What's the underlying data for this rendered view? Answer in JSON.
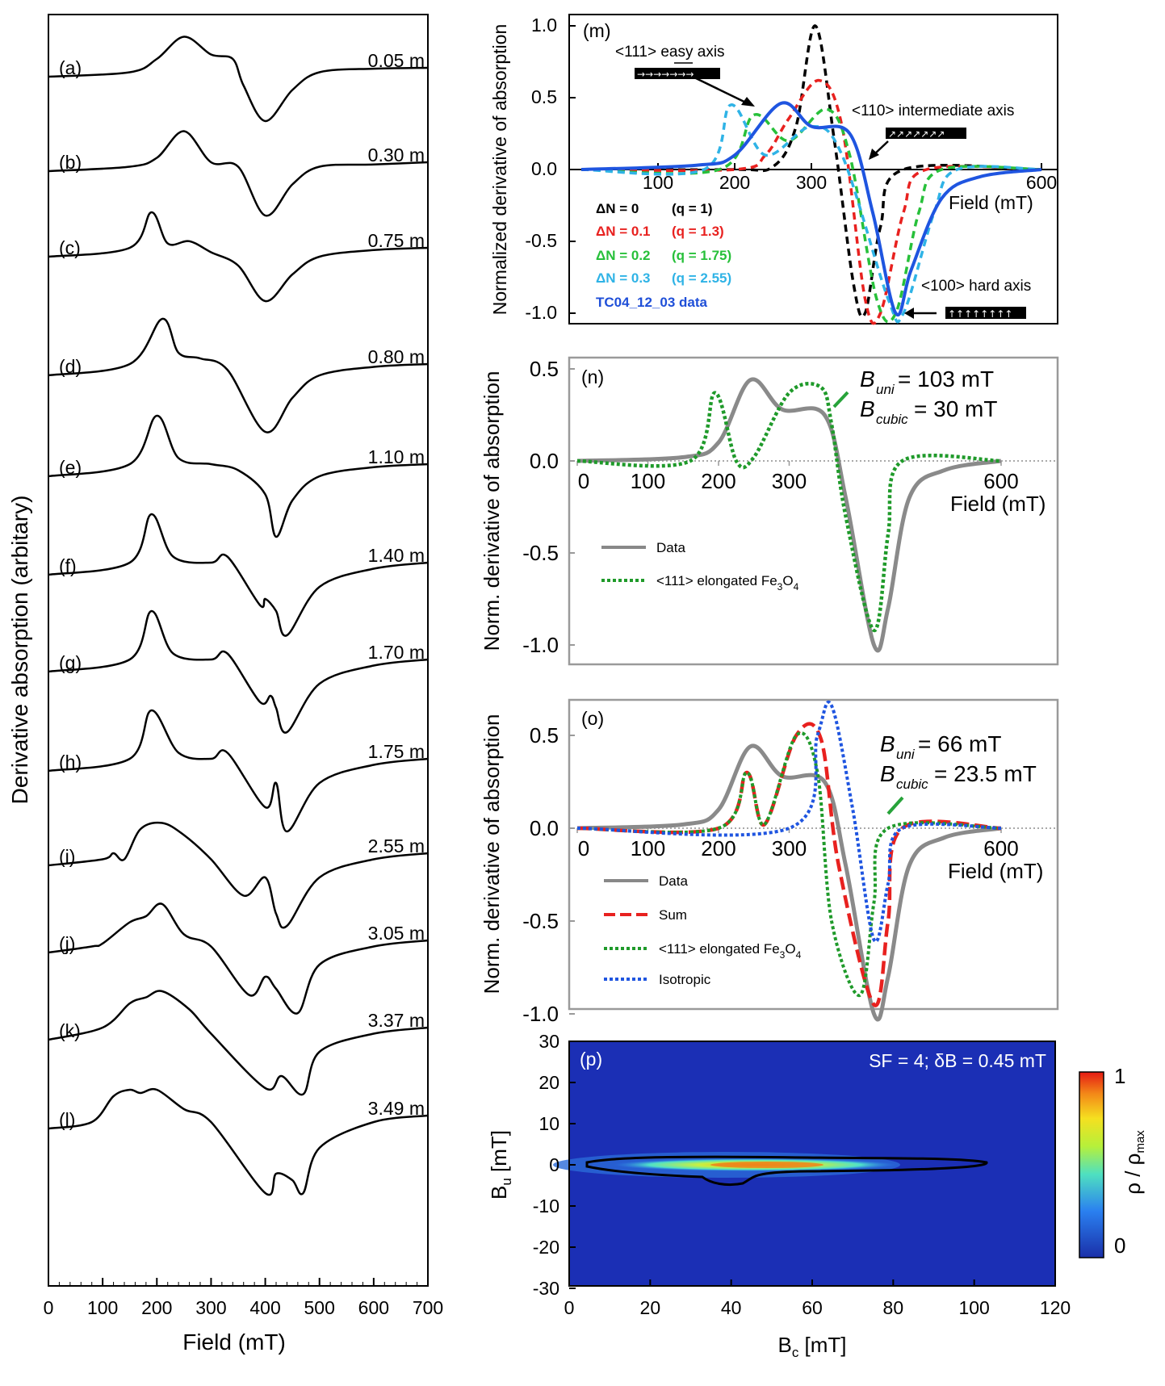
{
  "left_panel": {
    "ylabel": "Derivative absorption (arbitary)",
    "xlabel": "Field (mT)",
    "xticks": [
      "0",
      "100",
      "200",
      "300",
      "400",
      "500",
      "600",
      "700"
    ],
    "spectra": [
      {
        "letter": "(a)",
        "depth": "0.05 m"
      },
      {
        "letter": "(b)",
        "depth": "0.30 m"
      },
      {
        "letter": "(c)",
        "depth": "0.75 m"
      },
      {
        "letter": "(d)",
        "depth": "0.80 m"
      },
      {
        "letter": "(e)",
        "depth": "1.10 m"
      },
      {
        "letter": "(f)",
        "depth": "1.40 m"
      },
      {
        "letter": "(g)",
        "depth": "1.70 m"
      },
      {
        "letter": "(h)",
        "depth": "1.75 m"
      },
      {
        "letter": "(i)",
        "depth": "2.55 m"
      },
      {
        "letter": "(j)",
        "depth": "3.05 m"
      },
      {
        "letter": "(k)",
        "depth": "3.37 m"
      },
      {
        "letter": "(l)",
        "depth": "3.49 m"
      }
    ]
  },
  "panel_m": {
    "label": "(m)",
    "ylabel": "Normalized derivative of absorption",
    "xlabel": "Field (mT)",
    "yticks": [
      "1.0",
      "0.5",
      "0.0",
      "-0.5",
      "-1.0"
    ],
    "xticks": [
      "100",
      "200",
      "300",
      "600"
    ],
    "easy_axis": "<111> easy axis",
    "intermediate_axis": "<110> intermediate axis",
    "hard_axis": "<100> hard axis",
    "legend": [
      {
        "dn": "ΔN = 0",
        "q": "(q = 1)",
        "color": "#000000"
      },
      {
        "dn": "ΔN = 0.1",
        "q": "(q = 1.3)",
        "color": "#e8211f"
      },
      {
        "dn": "ΔN = 0.2",
        "q": "(q = 1.75)",
        "color": "#27c03a"
      },
      {
        "dn": "ΔN = 0.3",
        "q": "(q = 2.55)",
        "color": "#2fb3e6"
      },
      {
        "dn": "TC04_12_03 data",
        "q": "",
        "color": "#1f4fd8"
      }
    ]
  },
  "panel_n": {
    "label": "(n)",
    "ylabel": "Norm. derivative of absorption",
    "xlabel": "Field (mT)",
    "yticks": [
      "0.5",
      "0.0",
      "-0.5",
      "-1.0"
    ],
    "xticks": [
      "0",
      "100",
      "200",
      "300",
      "600"
    ],
    "b_uni": "B",
    "b_uni_sub": "uni",
    "b_uni_val": " = 103 mT",
    "b_cubic": "B",
    "b_cubic_sub": "cubic",
    "b_cubic_val": " = 30 mT",
    "legend_data": "Data",
    "legend_fit": "<111> elongated Fe",
    "legend_fit_sub1": "3",
    "legend_fit_mid": "O",
    "legend_fit_sub2": "4"
  },
  "panel_o": {
    "label": "(o)",
    "ylabel": "Norm. derivative of absorption",
    "xlabel": "Field (mT)",
    "yticks": [
      "0.5",
      "0.0",
      "-0.5",
      "-1.0"
    ],
    "xticks": [
      "0",
      "100",
      "200",
      "300",
      "600"
    ],
    "b_uni": "B",
    "b_uni_sub": "uni",
    "b_uni_val": " = 66 mT",
    "b_cubic": "B",
    "b_cubic_sub": "cubic",
    "b_cubic_val": " = 23.5 mT",
    "legend_data": "Data",
    "legend_sum": "Sum",
    "legend_fit": "<111> elongated Fe",
    "legend_fit_sub1": "3",
    "legend_fit_mid": "O",
    "legend_fit_sub2": "4",
    "legend_iso": "Isotropic"
  },
  "panel_p": {
    "label": "(p)",
    "annotation": "SF = 4; δB = 0.45 mT",
    "ylabel_main": "B",
    "ylabel_sub": "u",
    "ylabel_unit": " [mT]",
    "xlabel_main": "B",
    "xlabel_sub": "c",
    "xlabel_unit": " [mT]",
    "yticks": [
      "30",
      "20",
      "10",
      "0",
      "-10",
      "-20",
      "-30"
    ],
    "xticks": [
      "0",
      "20",
      "40",
      "60",
      "80",
      "100",
      "120"
    ],
    "colorbar_max": "1",
    "colorbar_min": "0",
    "colorbar_label": "ρ / ρ",
    "colorbar_sub": "max"
  },
  "chart_data": [
    {
      "type": "line",
      "title": "",
      "xlabel": "Field (mT)",
      "ylabel": "Derivative absorption (arbitary)",
      "xlim": [
        0,
        700
      ],
      "series": [
        {
          "name": "0.05 m",
          "x": [
            0,
            150,
            200,
            250,
            300,
            340,
            360,
            400,
            450,
            500,
            600,
            700
          ],
          "values": [
            0,
            0.1,
            0.4,
            0.9,
            0.5,
            0.4,
            -0.2,
            -1.0,
            -0.3,
            0.1,
            0.18,
            0.2
          ]
        },
        {
          "name": "0.30 m",
          "x": [
            0,
            150,
            200,
            250,
            300,
            350,
            400,
            450,
            500,
            600,
            700
          ],
          "values": [
            0,
            0.1,
            0.3,
            0.9,
            0.2,
            0.1,
            -1.0,
            -0.3,
            0.1,
            0.15,
            0.2
          ]
        },
        {
          "name": "0.75 m",
          "x": [
            0,
            150,
            190,
            220,
            260,
            300,
            350,
            400,
            450,
            500,
            600,
            700
          ],
          "values": [
            0,
            0.2,
            1.0,
            0.3,
            0.35,
            0.1,
            -0.2,
            -1.0,
            -0.4,
            0,
            0.15,
            0.2
          ]
        },
        {
          "name": "0.80 m",
          "x": [
            0,
            150,
            210,
            240,
            280,
            330,
            400,
            450,
            500,
            600,
            700
          ],
          "values": [
            0,
            0.2,
            1.0,
            0.4,
            0.3,
            0.1,
            -1.0,
            -0.4,
            0,
            0.15,
            0.2
          ]
        },
        {
          "name": "1.10 m",
          "x": [
            0,
            150,
            200,
            240,
            300,
            350,
            400,
            420,
            450,
            500,
            600,
            700
          ],
          "values": [
            0,
            0.2,
            1.0,
            0.3,
            0.2,
            0.1,
            -0.3,
            -1.0,
            -0.4,
            0,
            0.15,
            0.2
          ]
        },
        {
          "name": "1.40 m",
          "x": [
            0,
            150,
            190,
            230,
            300,
            330,
            390,
            400,
            420,
            440,
            500,
            600,
            700
          ],
          "values": [
            0,
            0.2,
            1.0,
            0.3,
            0.2,
            0.3,
            -0.5,
            -0.4,
            -0.6,
            -1.0,
            -0.2,
            0.1,
            0.2
          ]
        },
        {
          "name": "1.70 m",
          "x": [
            0,
            150,
            190,
            230,
            300,
            330,
            390,
            410,
            420,
            440,
            500,
            600,
            700
          ],
          "values": [
            0,
            0.2,
            1.0,
            0.3,
            0.2,
            0.3,
            -0.5,
            -0.4,
            -0.6,
            -1.0,
            -0.2,
            0.1,
            0.2
          ]
        },
        {
          "name": "1.75 m",
          "x": [
            0,
            150,
            190,
            240,
            300,
            330,
            400,
            420,
            440,
            500,
            600,
            700
          ],
          "values": [
            0,
            0.2,
            1.0,
            0.3,
            0.2,
            0.3,
            -0.6,
            -0.2,
            -1.0,
            -0.2,
            0.1,
            0.2
          ]
        },
        {
          "name": "2.55 m",
          "x": [
            0,
            100,
            120,
            140,
            170,
            210,
            250,
            300,
            360,
            400,
            420,
            440,
            500,
            600,
            700
          ],
          "values": [
            0,
            0.1,
            0.2,
            0.1,
            0.6,
            0.7,
            0.5,
            0.1,
            -0.5,
            -0.2,
            -0.8,
            -1.0,
            -0.2,
            0.1,
            0.2
          ]
        },
        {
          "name": "3.05 m",
          "x": [
            0,
            80,
            100,
            150,
            180,
            210,
            250,
            300,
            370,
            400,
            420,
            460,
            500,
            600,
            700
          ],
          "values": [
            0,
            0.1,
            0.15,
            0.5,
            0.6,
            0.8,
            0.3,
            0.1,
            -0.7,
            -0.4,
            -0.6,
            -1.0,
            -0.2,
            0.1,
            0.2
          ]
        },
        {
          "name": "3.37 m",
          "x": [
            0,
            100,
            150,
            180,
            210,
            260,
            300,
            400,
            430,
            470,
            500,
            600,
            700
          ],
          "values": [
            0,
            0.2,
            0.6,
            0.7,
            0.8,
            0.5,
            0.1,
            -0.8,
            -0.6,
            -0.9,
            -0.2,
            0.1,
            0.2
          ]
        },
        {
          "name": "3.49 m",
          "x": [
            0,
            80,
            120,
            150,
            170,
            200,
            250,
            300,
            400,
            420,
            450,
            470,
            500,
            600,
            700
          ],
          "values": [
            0,
            0.1,
            0.5,
            0.6,
            0.55,
            0.6,
            0.3,
            0.1,
            -1.0,
            -0.7,
            -0.8,
            -1.0,
            -0.3,
            0.1,
            0.2
          ]
        }
      ]
    },
    {
      "type": "line",
      "xlabel": "Field (mT)",
      "ylabel": "Normalized derivative of absorption",
      "xlim": [
        0,
        600
      ],
      "ylim": [
        -1.0,
        1.0
      ],
      "series": [
        {
          "name": "ΔN = 0",
          "x": [
            0,
            200,
            250,
            280,
            305,
            330,
            355,
            370,
            390,
            420,
            600
          ],
          "values": [
            0,
            0,
            0.02,
            0.3,
            1.0,
            0.2,
            -0.8,
            -1.0,
            -0.4,
            0,
            0
          ]
        },
        {
          "name": "ΔN = 0.1",
          "x": [
            0,
            200,
            240,
            270,
            310,
            340,
            370,
            390,
            420,
            450,
            600
          ],
          "values": [
            0,
            0,
            0.1,
            0.35,
            0.62,
            0.3,
            -0.9,
            -1.0,
            -0.3,
            0,
            0
          ]
        },
        {
          "name": "ΔN = 0.2",
          "x": [
            0,
            180,
            225,
            270,
            320,
            350,
            385,
            410,
            440,
            470,
            600
          ],
          "values": [
            0,
            0,
            0.38,
            0.2,
            0.42,
            0.1,
            -0.9,
            -1.0,
            -0.3,
            0,
            0
          ]
        },
        {
          "name": "ΔN = 0.3",
          "x": [
            0,
            160,
            195,
            240,
            300,
            340,
            400,
            420,
            460,
            490,
            600
          ],
          "values": [
            0,
            0,
            0.45,
            0.1,
            0.3,
            0.1,
            -0.9,
            -1.0,
            -0.3,
            0,
            0
          ]
        },
        {
          "name": "TC04_12_03 data",
          "x": [
            0,
            150,
            200,
            260,
            300,
            350,
            380,
            410,
            430,
            470,
            520,
            600
          ],
          "values": [
            0,
            0.03,
            0.1,
            0.46,
            0.3,
            0.25,
            -0.3,
            -1.0,
            -0.7,
            -0.2,
            -0.05,
            0
          ]
        }
      ]
    },
    {
      "type": "line",
      "xlabel": "Field (mT)",
      "ylabel": "Norm. derivative of absorption",
      "xlim": [
        0,
        600
      ],
      "ylim": [
        -1.0,
        0.5
      ],
      "series": [
        {
          "name": "Data",
          "x": [
            0,
            150,
            200,
            245,
            290,
            350,
            380,
            420,
            440,
            470,
            520,
            600
          ],
          "values": [
            0,
            0.02,
            0.1,
            0.44,
            0.28,
            0.25,
            -0.2,
            -1.0,
            -0.8,
            -0.2,
            -0.05,
            0
          ]
        },
        {
          "name": "<111> elongated Fe3O4",
          "x": [
            0,
            160,
            195,
            225,
            250,
            300,
            345,
            360,
            380,
            420,
            440,
            460,
            600
          ],
          "values": [
            0,
            0,
            0.37,
            0.0,
            0.02,
            0.37,
            0.4,
            0.2,
            -0.3,
            -0.92,
            -0.4,
            0,
            0
          ]
        }
      ]
    },
    {
      "type": "line",
      "xlabel": "Field (mT)",
      "ylabel": "Norm. derivative of absorption",
      "xlim": [
        0,
        600
      ],
      "ylim": [
        -1.0,
        0.5
      ],
      "series": [
        {
          "name": "Data",
          "x": [
            0,
            150,
            200,
            245,
            290,
            350,
            380,
            420,
            440,
            470,
            520,
            600
          ],
          "values": [
            0,
            0.02,
            0.1,
            0.44,
            0.28,
            0.25,
            -0.2,
            -1.0,
            -0.8,
            -0.2,
            -0.05,
            0
          ]
        },
        {
          "name": "Sum",
          "x": [
            0,
            200,
            240,
            265,
            310,
            345,
            370,
            420,
            440,
            460,
            600
          ],
          "values": [
            0,
            0,
            0.3,
            0.02,
            0.5,
            0.48,
            -0.2,
            -0.95,
            -0.5,
            0,
            0
          ]
        },
        {
          "name": "<111> elongated Fe3O4",
          "x": [
            0,
            200,
            240,
            265,
            310,
            340,
            360,
            400,
            420,
            440,
            600
          ],
          "values": [
            0,
            0,
            0.3,
            0.02,
            0.5,
            0.3,
            -0.5,
            -0.9,
            -0.4,
            0,
            0
          ]
        },
        {
          "name": "Isotropic",
          "x": [
            0,
            300,
            340,
            360,
            390,
            420,
            440,
            460,
            600
          ],
          "values": [
            0,
            0,
            0.5,
            0.66,
            0.1,
            -0.6,
            -0.3,
            0,
            0
          ]
        }
      ]
    },
    {
      "type": "heatmap",
      "xlabel": "Bc [mT]",
      "ylabel": "Bu [mT]",
      "xlim": [
        0,
        120
      ],
      "ylim": [
        -30,
        30
      ],
      "x": [
        5,
        20,
        40,
        50,
        60,
        70,
        80,
        90,
        100
      ],
      "values": [
        0.1,
        0.3,
        0.6,
        0.8,
        0.9,
        0.85,
        0.6,
        0.4,
        0.1
      ]
    }
  ]
}
